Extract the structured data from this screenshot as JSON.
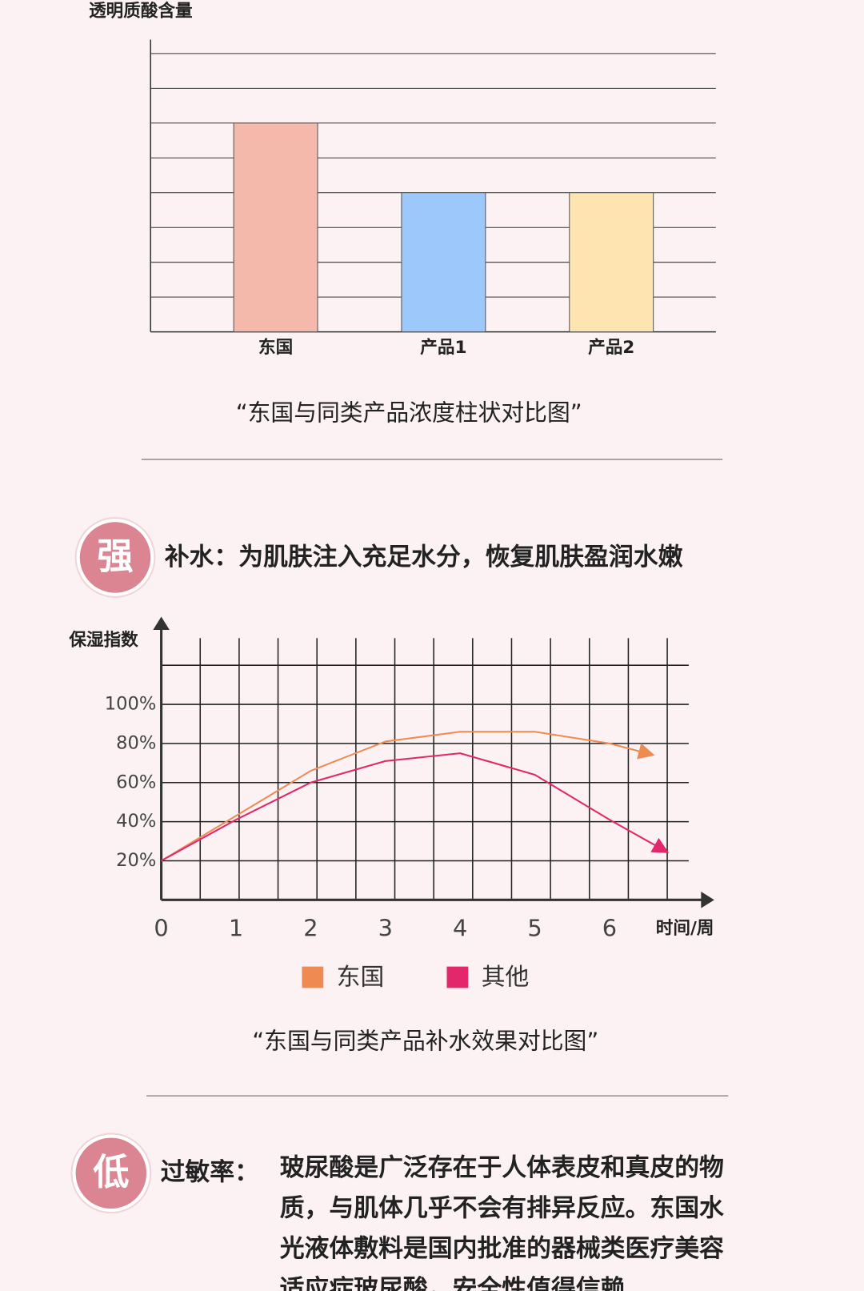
{
  "chart_data": [
    {
      "type": "bar",
      "y_label": "透明质酸含量",
      "categories": [
        "东国",
        "产品1",
        "产品2"
      ],
      "values": [
        6,
        4,
        4
      ],
      "colors": [
        "#f4b9ab",
        "#9dc8fc",
        "#fde4b1"
      ],
      "ylim": [
        0,
        8.4
      ],
      "yticks": [
        0,
        1,
        2,
        3,
        4,
        5,
        6,
        7,
        8
      ],
      "grid": true,
      "caption": "“东国与同类产品浓度柱状对比图”"
    },
    {
      "type": "line",
      "y_label": "保湿指数",
      "x_label": "时间/周",
      "xlim": [
        0,
        7.06
      ],
      "xticks": [
        0,
        1,
        2,
        3,
        4,
        5,
        6
      ],
      "ylim": [
        0,
        120
      ],
      "yticks": [
        {
          "value": 20,
          "label": "20%"
        },
        {
          "value": 40,
          "label": "40%"
        },
        {
          "value": 60,
          "label": "60%"
        },
        {
          "value": 80,
          "label": "80%"
        },
        {
          "value": 100,
          "label": "100%"
        }
      ],
      "grid": true,
      "series": [
        {
          "name": "东国",
          "color": "#ef8a52",
          "x": [
            0,
            1,
            2,
            3,
            4,
            5,
            6,
            6.5
          ],
          "values": [
            20,
            43,
            66,
            81,
            86,
            86,
            80,
            75
          ]
        },
        {
          "name": "其他",
          "color": "#e2276a",
          "x": [
            0,
            1,
            2,
            3,
            4,
            5,
            6,
            6.7
          ],
          "values": [
            20,
            41,
            60,
            71,
            75,
            64,
            41,
            26
          ]
        }
      ],
      "caption": "“东国与同类产品补水效果对比图”"
    }
  ],
  "sections": [
    {
      "badge": "强",
      "heading": "补水：为肌肤注入充足水分，恢复肌肤盈润水嫩"
    },
    {
      "badge": "低",
      "label": "过敏率：",
      "lines": [
        "玻尿酸是广泛存在于人体表皮和真皮的物",
        "质，与肌体几乎不会有排异反应。东国水",
        "光液体敷料是国内批准的器械类医疗美容",
        "适应症玻尿酸，安全性值得信赖"
      ]
    }
  ]
}
